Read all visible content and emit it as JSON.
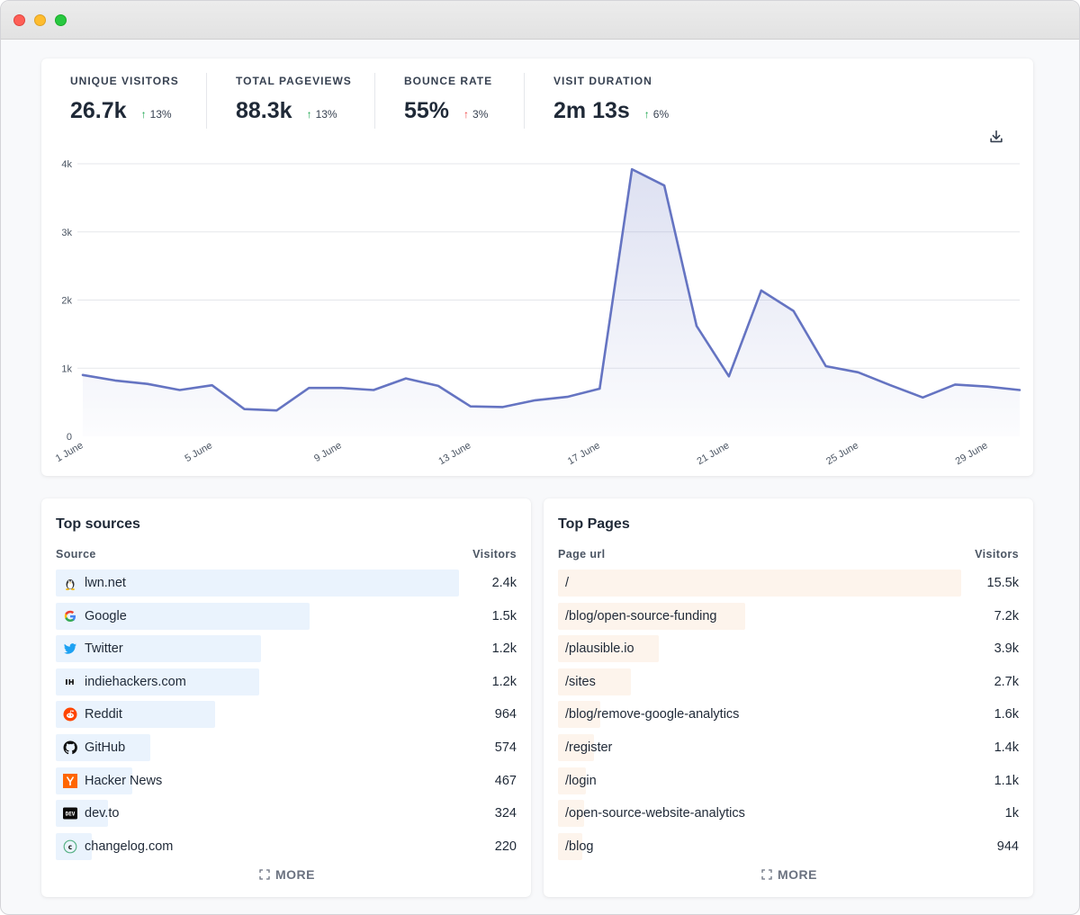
{
  "stats": [
    {
      "label": "UNIQUE VISITORS",
      "value": "26.7k",
      "change": "13%",
      "direction": "up",
      "color": "#16a34a"
    },
    {
      "label": "TOTAL PAGEVIEWS",
      "value": "88.3k",
      "change": "13%",
      "direction": "up",
      "color": "#16a34a"
    },
    {
      "label": "BOUNCE RATE",
      "value": "55%",
      "change": "3%",
      "direction": "up",
      "color": "#ef4444"
    },
    {
      "label": "VISIT DURATION",
      "value": "2m 13s",
      "change": "6%",
      "direction": "up",
      "color": "#16a34a"
    }
  ],
  "chart_data": {
    "type": "area",
    "y_ticks": [
      "0",
      "1k",
      "2k",
      "3k",
      "4k"
    ],
    "ylim": [
      0,
      4000
    ],
    "x_tick_labels": [
      "1 June",
      "5 June",
      "9 June",
      "13 June",
      "17 June",
      "21 June",
      "25 June",
      "29 June"
    ],
    "x_tick_days": [
      1,
      5,
      9,
      13,
      17,
      21,
      25,
      29
    ],
    "line_color": "#6574c2",
    "grid": true,
    "series": [
      {
        "x": [
          1,
          2,
          3,
          4,
          5,
          6,
          7,
          8,
          9,
          10,
          11,
          12,
          13,
          14,
          15,
          16,
          17,
          18,
          19,
          20,
          21,
          22,
          23,
          24,
          25,
          26,
          27,
          28,
          29,
          30
        ],
        "values": [
          900,
          820,
          770,
          680,
          750,
          400,
          380,
          710,
          710,
          680,
          850,
          740,
          440,
          430,
          530,
          580,
          700,
          3920,
          3680,
          1620,
          880,
          2140,
          1840,
          1030,
          940,
          750,
          570,
          760,
          730,
          680
        ]
      }
    ]
  },
  "top_sources": {
    "title": "Top sources",
    "col_source": "Source",
    "col_visitors": "Visitors",
    "bar_color": "#eaf3fd",
    "more": "MORE",
    "rows": [
      {
        "icon": "linux-penguin-icon",
        "label": "lwn.net",
        "value": "2.4k",
        "ratio": 1.0
      },
      {
        "icon": "google-icon",
        "label": "Google",
        "value": "1.5k",
        "ratio": 0.63
      },
      {
        "icon": "twitter-icon",
        "label": "Twitter",
        "value": "1.2k",
        "ratio": 0.51
      },
      {
        "icon": "indiehackers-icon",
        "label": "indiehackers.com",
        "value": "1.2k",
        "ratio": 0.505
      },
      {
        "icon": "reddit-icon",
        "label": "Reddit",
        "value": "964",
        "ratio": 0.395
      },
      {
        "icon": "github-icon",
        "label": "GitHub",
        "value": "574",
        "ratio": 0.235
      },
      {
        "icon": "hacker-news-icon",
        "label": "Hacker News",
        "value": "467",
        "ratio": 0.19
      },
      {
        "icon": "devto-icon",
        "label": "dev.to",
        "value": "324",
        "ratio": 0.13
      },
      {
        "icon": "changelog-icon",
        "label": "changelog.com",
        "value": "220",
        "ratio": 0.09
      }
    ]
  },
  "top_pages": {
    "title": "Top Pages",
    "col_page": "Page url",
    "col_visitors": "Visitors",
    "bar_color": "#fdf4ec",
    "more": "MORE",
    "rows": [
      {
        "label": "/",
        "value": "15.5k",
        "ratio": 1.0
      },
      {
        "label": "/blog/open-source-funding",
        "value": "7.2k",
        "ratio": 0.465
      },
      {
        "label": "/plausible.io",
        "value": "3.9k",
        "ratio": 0.25
      },
      {
        "label": "/sites",
        "value": "2.7k",
        "ratio": 0.18
      },
      {
        "label": "/blog/remove-google-analytics",
        "value": "1.6k",
        "ratio": 0.105
      },
      {
        "label": "/register",
        "value": "1.4k",
        "ratio": 0.09
      },
      {
        "label": "/login",
        "value": "1.1k",
        "ratio": 0.07
      },
      {
        "label": "/open-source-website-analytics",
        "value": "1k",
        "ratio": 0.065
      },
      {
        "label": "/blog",
        "value": "944",
        "ratio": 0.06
      }
    ]
  }
}
